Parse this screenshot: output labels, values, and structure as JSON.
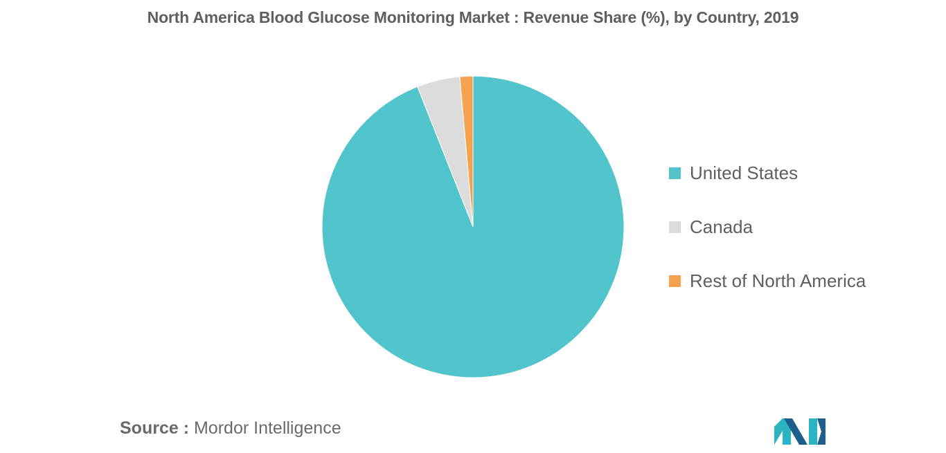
{
  "title": "North America Blood Glucose Monitoring Market : Revenue Share (%), by Country, 2019",
  "source": {
    "prefix": "Source :",
    "text": "Mordor Intelligence"
  },
  "logo": {
    "name": "mordor-intelligence-logo",
    "colors": [
      "#2bb3c4",
      "#1d5f8a"
    ]
  },
  "chart_data": {
    "type": "pie",
    "title": "North America Blood Glucose Monitoring Market : Revenue Share (%), by Country, 2019",
    "start_angle_deg": 0,
    "direction": "clockwise",
    "legend_placement": "right",
    "slices": [
      {
        "label": "United States",
        "value": 94,
        "color": "#52c4cb"
      },
      {
        "label": "Canada",
        "value": 4.6,
        "color": "#dcdcdc"
      },
      {
        "label": "Rest of North America",
        "value": 1.4,
        "color": "#f7a24f"
      }
    ]
  }
}
